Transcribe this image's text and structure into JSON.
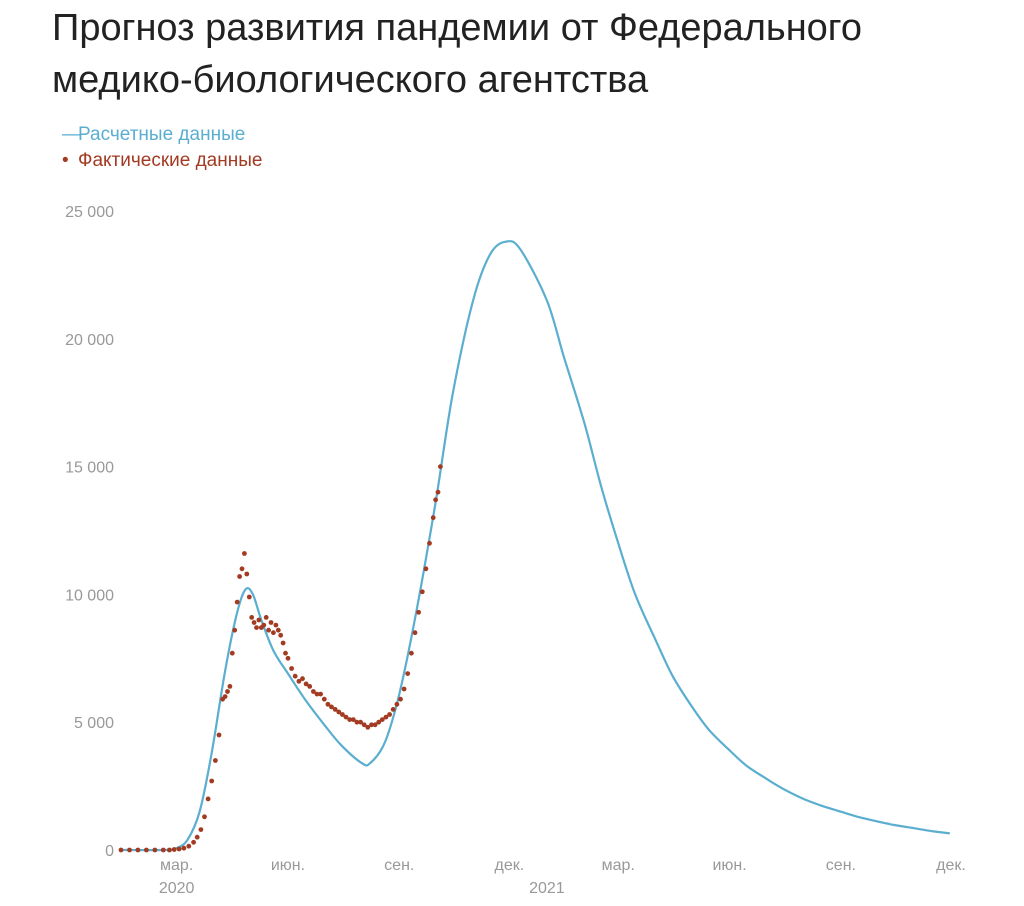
{
  "title": "Прогноз развития пандемии от Федерального медико-биологического агентства",
  "legend": {
    "position": "top-left",
    "items": [
      {
        "marker": "—",
        "label": "Расчетные данные"
      },
      {
        "marker": "•",
        "label": "Фактические данные"
      }
    ]
  },
  "colors": {
    "forecast": "#5aaed0",
    "actual": "#a33a22",
    "tick_text": "#999999",
    "title_text": "#222222"
  },
  "chart_data": {
    "type": "line",
    "title": "Прогноз развития пандемии от Федерального медико-биологического агентства",
    "xlabel": "",
    "ylabel": "",
    "grid": false,
    "legend_position": "top-left",
    "xlim": [
      "2020-01-15",
      "2021-12-01"
    ],
    "ylim": [
      0,
      25000
    ],
    "y_ticks": [
      {
        "value": 0,
        "label": "0"
      },
      {
        "value": 5000,
        "label": "5 000"
      },
      {
        "value": 10000,
        "label": "10 000"
      },
      {
        "value": 15000,
        "label": "15 000"
      },
      {
        "value": 20000,
        "label": "20 000"
      },
      {
        "value": 25000,
        "label": "25 000"
      }
    ],
    "x_ticks": [
      {
        "date": "2020-03-01",
        "label": "мар."
      },
      {
        "date": "2020-06-01",
        "label": "июн."
      },
      {
        "date": "2020-09-01",
        "label": "сен."
      },
      {
        "date": "2020-12-01",
        "label": "дек."
      },
      {
        "date": "2021-03-01",
        "label": "мар."
      },
      {
        "date": "2021-06-01",
        "label": "июн."
      },
      {
        "date": "2021-09-01",
        "label": "сен."
      },
      {
        "date": "2021-12-01",
        "label": "дек."
      }
    ],
    "year_labels": [
      {
        "date": "2020-03-01",
        "label": "2020"
      },
      {
        "date": "2021-01-01",
        "label": "2021"
      }
    ],
    "series": [
      {
        "name": "Расчетные данные",
        "kind": "line",
        "points": [
          [
            "2020-01-15",
            0
          ],
          [
            "2020-02-20",
            0
          ],
          [
            "2020-03-01",
            80
          ],
          [
            "2020-03-10",
            400
          ],
          [
            "2020-03-20",
            1500
          ],
          [
            "2020-03-30",
            3800
          ],
          [
            "2020-04-10",
            7000
          ],
          [
            "2020-04-20",
            9300
          ],
          [
            "2020-04-27",
            10200
          ],
          [
            "2020-05-03",
            10000
          ],
          [
            "2020-05-10",
            9000
          ],
          [
            "2020-05-20",
            7800
          ],
          [
            "2020-06-01",
            6900
          ],
          [
            "2020-06-15",
            5900
          ],
          [
            "2020-07-01",
            4900
          ],
          [
            "2020-07-15",
            4100
          ],
          [
            "2020-08-01",
            3400
          ],
          [
            "2020-08-08",
            3400
          ],
          [
            "2020-08-20",
            4200
          ],
          [
            "2020-09-01",
            6100
          ],
          [
            "2020-09-15",
            9300
          ],
          [
            "2020-10-01",
            13600
          ],
          [
            "2020-10-15",
            17800
          ],
          [
            "2020-11-01",
            21500
          ],
          [
            "2020-11-15",
            23300
          ],
          [
            "2020-11-28",
            23800
          ],
          [
            "2020-12-10",
            23500
          ],
          [
            "2021-01-01",
            21500
          ],
          [
            "2021-01-15",
            19300
          ],
          [
            "2021-02-01",
            16700
          ],
          [
            "2021-02-15",
            14200
          ],
          [
            "2021-03-01",
            12000
          ],
          [
            "2021-03-15",
            10000
          ],
          [
            "2021-04-01",
            8200
          ],
          [
            "2021-04-15",
            6800
          ],
          [
            "2021-05-01",
            5600
          ],
          [
            "2021-05-15",
            4700
          ],
          [
            "2021-06-01",
            3900
          ],
          [
            "2021-06-15",
            3300
          ],
          [
            "2021-07-01",
            2800
          ],
          [
            "2021-07-15",
            2400
          ],
          [
            "2021-08-01",
            2000
          ],
          [
            "2021-08-15",
            1750
          ],
          [
            "2021-09-01",
            1500
          ],
          [
            "2021-09-15",
            1300
          ],
          [
            "2021-10-01",
            1120
          ],
          [
            "2021-10-15",
            980
          ],
          [
            "2021-11-01",
            850
          ],
          [
            "2021-11-15",
            740
          ],
          [
            "2021-11-30",
            650
          ]
        ]
      },
      {
        "name": "Фактические данные",
        "kind": "points",
        "points": [
          [
            "2020-01-15",
            0
          ],
          [
            "2020-01-22",
            0
          ],
          [
            "2020-01-29",
            0
          ],
          [
            "2020-02-05",
            0
          ],
          [
            "2020-02-12",
            0
          ],
          [
            "2020-02-19",
            0
          ],
          [
            "2020-02-24",
            0
          ],
          [
            "2020-02-28",
            20
          ],
          [
            "2020-03-03",
            40
          ],
          [
            "2020-03-07",
            70
          ],
          [
            "2020-03-11",
            150
          ],
          [
            "2020-03-15",
            300
          ],
          [
            "2020-03-18",
            500
          ],
          [
            "2020-03-21",
            800
          ],
          [
            "2020-03-24",
            1300
          ],
          [
            "2020-03-27",
            2000
          ],
          [
            "2020-03-30",
            2700
          ],
          [
            "2020-04-02",
            3500
          ],
          [
            "2020-04-05",
            4500
          ],
          [
            "2020-04-08",
            5900
          ],
          [
            "2020-04-10",
            6000
          ],
          [
            "2020-04-12",
            6200
          ],
          [
            "2020-04-14",
            6400
          ],
          [
            "2020-04-16",
            7700
          ],
          [
            "2020-04-18",
            8600
          ],
          [
            "2020-04-20",
            9700
          ],
          [
            "2020-04-22",
            10700
          ],
          [
            "2020-04-24",
            11000
          ],
          [
            "2020-04-26",
            11600
          ],
          [
            "2020-04-28",
            10800
          ],
          [
            "2020-04-30",
            9900
          ],
          [
            "2020-05-02",
            9100
          ],
          [
            "2020-05-04",
            8900
          ],
          [
            "2020-05-06",
            8700
          ],
          [
            "2020-05-08",
            9000
          ],
          [
            "2020-05-10",
            8700
          ],
          [
            "2020-05-12",
            8800
          ],
          [
            "2020-05-14",
            9100
          ],
          [
            "2020-05-16",
            8600
          ],
          [
            "2020-05-18",
            8900
          ],
          [
            "2020-05-20",
            8500
          ],
          [
            "2020-05-22",
            8800
          ],
          [
            "2020-05-24",
            8600
          ],
          [
            "2020-05-26",
            8400
          ],
          [
            "2020-05-28",
            8100
          ],
          [
            "2020-05-30",
            7700
          ],
          [
            "2020-06-01",
            7500
          ],
          [
            "2020-06-04",
            7100
          ],
          [
            "2020-06-07",
            6800
          ],
          [
            "2020-06-10",
            6600
          ],
          [
            "2020-06-13",
            6700
          ],
          [
            "2020-06-16",
            6500
          ],
          [
            "2020-06-19",
            6400
          ],
          [
            "2020-06-22",
            6200
          ],
          [
            "2020-06-25",
            6100
          ],
          [
            "2020-06-28",
            6100
          ],
          [
            "2020-07-01",
            5900
          ],
          [
            "2020-07-04",
            5700
          ],
          [
            "2020-07-07",
            5600
          ],
          [
            "2020-07-10",
            5500
          ],
          [
            "2020-07-13",
            5400
          ],
          [
            "2020-07-16",
            5300
          ],
          [
            "2020-07-19",
            5200
          ],
          [
            "2020-07-22",
            5100
          ],
          [
            "2020-07-25",
            5100
          ],
          [
            "2020-07-28",
            5000
          ],
          [
            "2020-07-31",
            5000
          ],
          [
            "2020-08-03",
            4900
          ],
          [
            "2020-08-06",
            4800
          ],
          [
            "2020-08-09",
            4900
          ],
          [
            "2020-08-12",
            4900
          ],
          [
            "2020-08-15",
            5000
          ],
          [
            "2020-08-18",
            5100
          ],
          [
            "2020-08-21",
            5200
          ],
          [
            "2020-08-24",
            5300
          ],
          [
            "2020-08-27",
            5500
          ],
          [
            "2020-08-30",
            5700
          ],
          [
            "2020-09-02",
            5900
          ],
          [
            "2020-09-05",
            6300
          ],
          [
            "2020-09-08",
            6900
          ],
          [
            "2020-09-11",
            7700
          ],
          [
            "2020-09-14",
            8500
          ],
          [
            "2020-09-17",
            9300
          ],
          [
            "2020-09-20",
            10100
          ],
          [
            "2020-09-23",
            11000
          ],
          [
            "2020-09-26",
            12000
          ],
          [
            "2020-09-29",
            13000
          ],
          [
            "2020-10-01",
            13700
          ],
          [
            "2020-10-03",
            14000
          ],
          [
            "2020-10-05",
            15000
          ]
        ]
      }
    ]
  }
}
